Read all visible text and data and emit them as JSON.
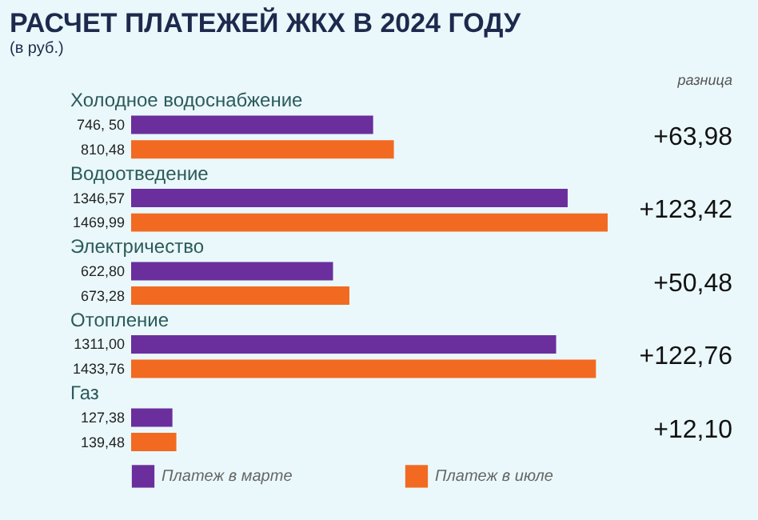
{
  "chart_data": {
    "type": "bar",
    "orientation": "horizontal",
    "title": "РАСЧЕТ ПЛАТЕЖЕЙ ЖКХ В 2024 ГОДУ",
    "subtitle": "(в руб.)",
    "categories": [
      "Холодное водоснабжение",
      "Водоотведение",
      "Электричество",
      "Отопление",
      "Газ"
    ],
    "series": [
      {
        "name": "Платеж в марте",
        "color": "#6a2f9c",
        "values": [
          746.5,
          1346.57,
          622.8,
          1311.0,
          127.38
        ],
        "value_labels": [
          "746, 50",
          "1346,57",
          "622,80",
          "1311,00",
          "127,38"
        ]
      },
      {
        "name": "Платеж в июле",
        "color": "#f26a21",
        "values": [
          810.48,
          1469.99,
          673.28,
          1433.76,
          139.48
        ],
        "value_labels": [
          "810,48",
          "1469,99",
          "673,28",
          "1433,76",
          "139,48"
        ]
      }
    ],
    "annotations": [
      "разница",
      "+63,98",
      "+123,42",
      "+50,48",
      "+122,76",
      "+12,10"
    ],
    "legend": "bottom"
  }
}
